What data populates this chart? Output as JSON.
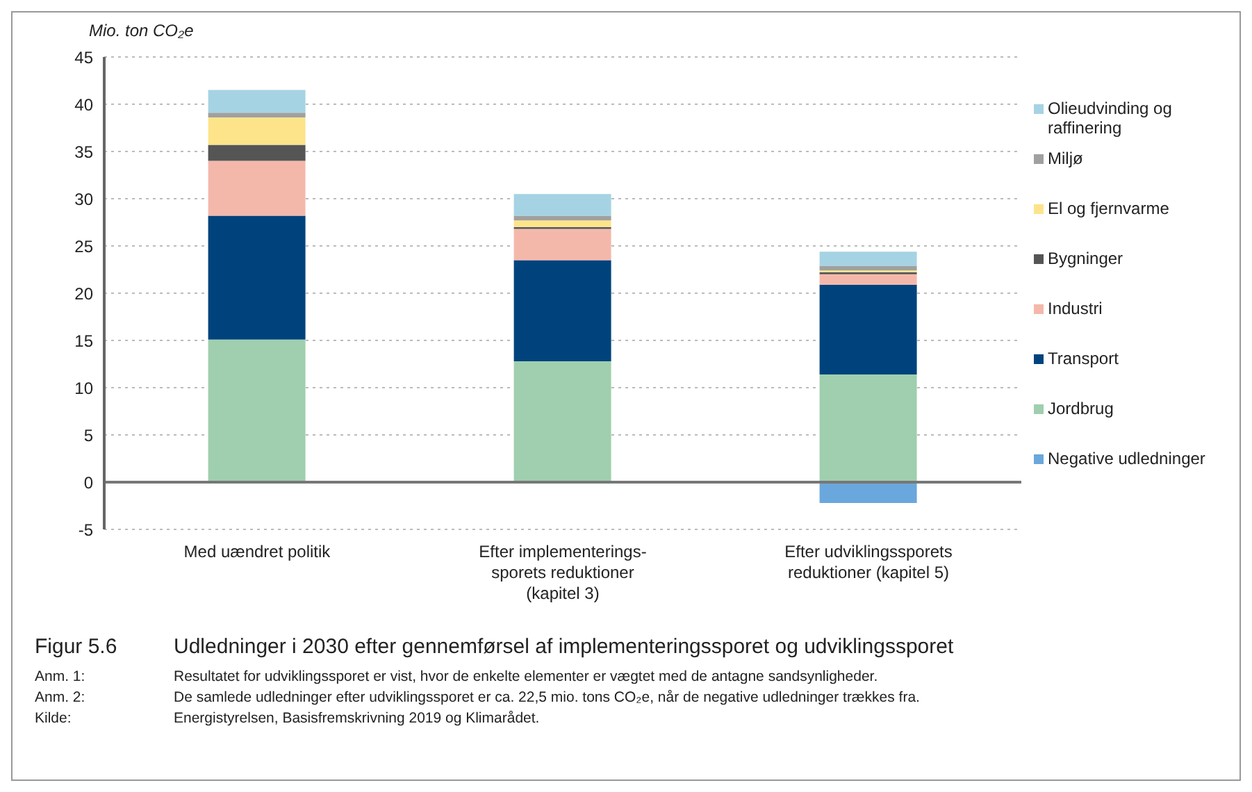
{
  "chart_data": {
    "type": "bar",
    "stacked": true,
    "title": "Figur 5.6   Udledninger i 2030 efter gennemførsel af implementeringssporet og udviklingssporet",
    "ylabel": "Mio. ton CO₂e",
    "categories": [
      "Med uændret politik",
      "Efter implementerings-sporets reduktioner (kapitel 3)",
      "Efter udviklingssporets reduktioner (kapitel 5)"
    ],
    "series": [
      {
        "name": "Negative udledninger",
        "color": "#6aa7dc",
        "values": [
          null,
          null,
          -2.2
        ]
      },
      {
        "name": "Jordbrug",
        "color": "#9fcfae",
        "values": [
          15.1,
          12.8,
          11.4
        ]
      },
      {
        "name": "Transport",
        "color": "#00437c",
        "values": [
          13.1,
          10.7,
          9.5
        ]
      },
      {
        "name": "Industri",
        "color": "#f4b8ab",
        "values": [
          5.8,
          3.3,
          1.1
        ]
      },
      {
        "name": "Bygninger",
        "color": "#555555",
        "values": [
          1.7,
          0.2,
          0.2
        ]
      },
      {
        "name": "El og fjernvarme",
        "color": "#fde48a",
        "values": [
          2.9,
          0.7,
          0.2
        ]
      },
      {
        "name": "Miljø",
        "color": "#a0a0a0",
        "values": [
          0.5,
          0.5,
          0.5
        ]
      },
      {
        "name": "Olieudvinding og raffinering",
        "color": "#a6d3e3",
        "values": [
          2.4,
          2.3,
          1.5
        ]
      }
    ],
    "ylim": [
      -5,
      45
    ],
    "yticks": [
      -5,
      0,
      5,
      10,
      15,
      20,
      25,
      30,
      35,
      40,
      45
    ],
    "grid": "y",
    "legend": "right",
    "annotations": [
      "Anm. 1: Resultatet for udviklingssporet er vist, hvor de enkelte elementer er vægtet med de antagne sandsynligheder.",
      "Anm. 2: De samlede udledninger efter udviklingssporet er ca. 22,5 mio. tons CO₂e, når de negative udledninger trækkes fra.",
      "Kilde: Energistyrelsen, Basisfremskrivning 2019 og Klimarådet."
    ]
  }
}
